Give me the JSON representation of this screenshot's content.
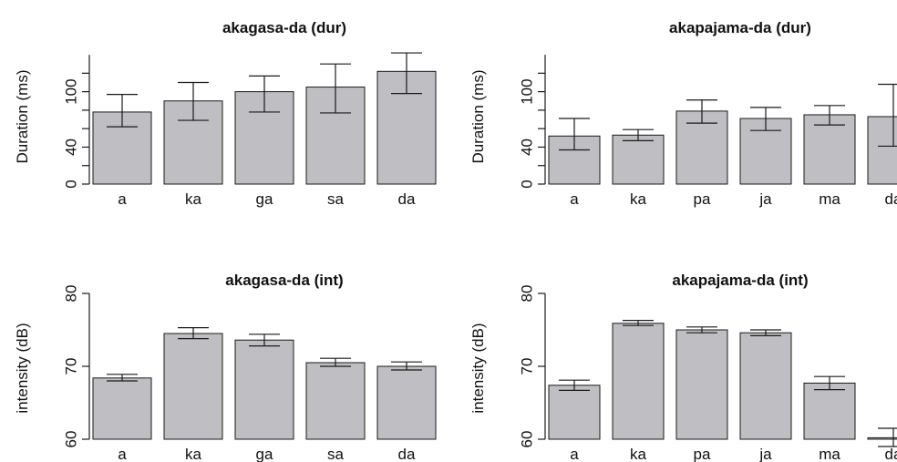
{
  "colors": {
    "bar_fill": "#bfbfc3",
    "stroke": "#1a1a1a",
    "background": "#ffffff"
  },
  "chart_data": [
    {
      "type": "bar",
      "title": "akagasa-da (dur)",
      "xlabel": "",
      "ylabel": "Duration (ms)",
      "categories": [
        "a",
        "ka",
        "ga",
        "sa",
        "da"
      ],
      "values": [
        78,
        90,
        100,
        105,
        122
      ],
      "error_low": [
        62,
        69,
        78,
        77,
        98
      ],
      "error_high": [
        97,
        110,
        117,
        130,
        142
      ],
      "ylim": [
        0,
        145
      ],
      "ticks": [
        0,
        40,
        100
      ],
      "minor_ticks": [
        20,
        60,
        80,
        120
      ],
      "grid": false
    },
    {
      "type": "bar",
      "title": "akapajama-da (dur)",
      "xlabel": "",
      "ylabel": "Duration (ms)",
      "categories": [
        "a",
        "ka",
        "pa",
        "ja",
        "ma",
        "da"
      ],
      "values": [
        52,
        53,
        79,
        71,
        75,
        73
      ],
      "error_low": [
        37,
        47,
        66,
        58,
        64,
        41
      ],
      "error_high": [
        71,
        59,
        91,
        83,
        85,
        108
      ],
      "ylim": [
        0,
        145
      ],
      "ticks": [
        0,
        40,
        100
      ],
      "minor_ticks": [
        20,
        60,
        80,
        120
      ],
      "grid": false
    },
    {
      "type": "bar",
      "title": "akagasa-da (int)",
      "xlabel": "",
      "ylabel": "intensity (dB)",
      "categories": [
        "a",
        "ka",
        "ga",
        "sa",
        "da"
      ],
      "values": [
        68.4,
        74.5,
        73.6,
        70.5,
        70.0
      ],
      "error_low": [
        68.0,
        73.8,
        72.8,
        70.0,
        69.5
      ],
      "error_high": [
        68.9,
        75.3,
        74.4,
        71.1,
        70.6
      ],
      "ylim": [
        60,
        80
      ],
      "ticks": [
        60,
        70,
        80
      ],
      "minor_ticks": [],
      "grid": false
    },
    {
      "type": "bar",
      "title": "akapajama-da (int)",
      "xlabel": "",
      "ylabel": "intensity (dB)",
      "categories": [
        "a",
        "ka",
        "pa",
        "ja",
        "ma",
        "da"
      ],
      "values": [
        67.4,
        75.9,
        75.0,
        74.6,
        67.7,
        60.2
      ],
      "error_low": [
        66.7,
        75.6,
        74.6,
        74.2,
        66.8,
        59.0
      ],
      "error_high": [
        68.1,
        76.3,
        75.4,
        75.0,
        68.6,
        61.5
      ],
      "ylim": [
        60,
        80
      ],
      "ticks": [
        60,
        70,
        80
      ],
      "minor_ticks": [],
      "grid": false
    }
  ]
}
